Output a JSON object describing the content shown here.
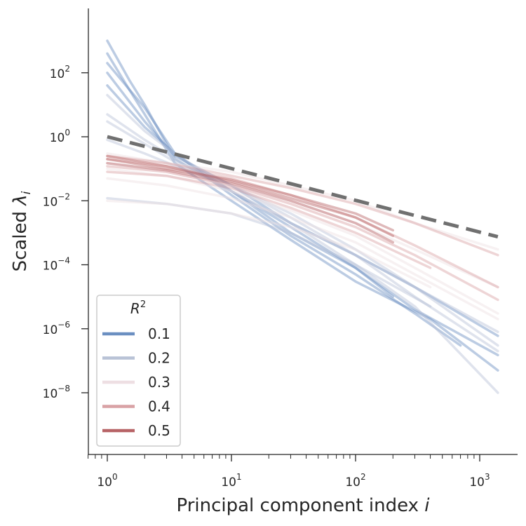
{
  "chart_data": {
    "type": "line",
    "title": "",
    "xlabel": "Principal component index",
    "xlabel_var": "i",
    "ylabel": "Scaled",
    "ylabel_var": "λ",
    "ylabel_sub": "i",
    "xscale": "log",
    "yscale": "log",
    "xlim": [
      0.7,
      2000
    ],
    "ylim": [
      1e-10,
      10000.0
    ],
    "xticks": [
      {
        "base": "10",
        "exp": "0",
        "value": 1
      },
      {
        "base": "10",
        "exp": "1",
        "value": 10
      },
      {
        "base": "10",
        "exp": "2",
        "value": 100
      },
      {
        "base": "10",
        "exp": "3",
        "value": 1000
      }
    ],
    "yticks": [
      {
        "base": "10",
        "exp": "2",
        "value": 100
      },
      {
        "base": "10",
        "exp": "0",
        "value": 1
      },
      {
        "base": "10",
        "exp": "−2",
        "value": 0.01
      },
      {
        "base": "10",
        "exp": "−4",
        "value": 0.0001
      },
      {
        "base": "10",
        "exp": "−6",
        "value": 1e-06
      },
      {
        "base": "10",
        "exp": "−8",
        "value": 1e-08
      }
    ],
    "grid": false,
    "legend": {
      "title": "R",
      "title_sup": "2",
      "placement": "lower-left",
      "entries": [
        {
          "label": "0.1",
          "color": "#6b8fc1"
        },
        {
          "label": "0.2",
          "color": "#b8c2d6"
        },
        {
          "label": "0.3",
          "color": "#eedfe3"
        },
        {
          "label": "0.4",
          "color": "#d9a2a5"
        },
        {
          "label": "0.5",
          "color": "#b76366"
        }
      ]
    },
    "reference_line": {
      "style": "dashed",
      "color": "#707070",
      "x": [
        1,
        1400
      ],
      "y": [
        1.0,
        0.00075
      ]
    },
    "series": [
      {
        "r2": "0.1",
        "color": "#6b8fc1",
        "x": [
          1,
          1.5,
          2,
          3.5,
          10,
          30,
          100,
          300,
          1400
        ],
        "y": [
          1000,
          60,
          10,
          0.2,
          0.02,
          0.001,
          8e-05,
          4e-06,
          1.5e-07
        ]
      },
      {
        "r2": "0.1",
        "color": "#6b8fc1",
        "x": [
          1,
          1.5,
          2,
          3.5,
          10,
          30,
          100,
          400,
          1400
        ],
        "y": [
          400,
          30,
          5,
          0.15,
          0.01,
          0.0006,
          3e-05,
          2e-06,
          5e-08
        ]
      },
      {
        "r2": "0.1",
        "color": "#6b8fc1",
        "x": [
          1,
          2,
          3.5,
          10,
          30,
          100,
          300,
          1400
        ],
        "y": [
          100,
          3,
          0.25,
          0.03,
          0.002,
          0.0002,
          2e-05,
          6e-07
        ]
      },
      {
        "r2": "0.1",
        "color": "#6b8fc1",
        "x": [
          1,
          2,
          3.5,
          10,
          30,
          100,
          200
        ],
        "y": [
          40,
          2,
          0.3,
          0.02,
          0.0015,
          8e-05,
          1e-05
        ]
      },
      {
        "r2": "0.1",
        "color": "#6b8fc1",
        "x": [
          1,
          2,
          3.5,
          10,
          30,
          100,
          300,
          700
        ],
        "y": [
          200,
          8,
          0.3,
          0.015,
          0.0008,
          5e-05,
          3e-06,
          3e-07
        ]
      },
      {
        "r2": "0.2",
        "color": "#b8c2d6",
        "x": [
          1,
          2,
          4,
          10,
          30,
          100,
          300,
          1400
        ],
        "y": [
          20,
          1.5,
          0.2,
          0.03,
          0.003,
          0.0002,
          2e-05,
          8e-07
        ]
      },
      {
        "r2": "0.2",
        "color": "#b8c2d6",
        "x": [
          1,
          2,
          4,
          10,
          30,
          100,
          400
        ],
        "y": [
          5,
          0.8,
          0.15,
          0.02,
          0.002,
          0.0001,
          5e-06
        ]
      },
      {
        "r2": "0.2",
        "color": "#b8c2d6",
        "x": [
          1,
          2,
          4,
          10,
          30,
          100,
          300,
          1400
        ],
        "y": [
          0.8,
          0.3,
          0.1,
          0.03,
          0.004,
          0.0003,
          2e-05,
          3e-07
        ]
      },
      {
        "r2": "0.2",
        "color": "#b8c2d6",
        "x": [
          1,
          3,
          10,
          30,
          100,
          300,
          1400
        ],
        "y": [
          0.012,
          0.008,
          0.004,
          0.001,
          0.0001,
          5e-06,
          1e-08
        ]
      },
      {
        "r2": "0.2",
        "color": "#b8c2d6",
        "x": [
          1,
          2,
          4,
          10,
          30,
          100,
          300,
          1400
        ],
        "y": [
          3,
          0.6,
          0.12,
          0.02,
          0.002,
          0.0002,
          1e-05,
          2e-07
        ]
      },
      {
        "r2": "0.3",
        "color": "#eedfe3",
        "x": [
          1,
          3,
          10,
          30,
          100,
          300,
          1400
        ],
        "y": [
          0.3,
          0.15,
          0.08,
          0.03,
          0.01,
          0.002,
          0.0003
        ]
      },
      {
        "r2": "0.3",
        "color": "#eedfe3",
        "x": [
          1,
          3,
          10,
          30,
          100,
          300,
          1400
        ],
        "y": [
          0.15,
          0.08,
          0.03,
          0.01,
          0.002,
          0.0003,
          2e-05
        ]
      },
      {
        "r2": "0.3",
        "color": "#eedfe3",
        "x": [
          1,
          3,
          10,
          30,
          100,
          300,
          1400
        ],
        "y": [
          0.05,
          0.03,
          0.012,
          0.003,
          0.0005,
          5e-05,
          2e-06
        ]
      },
      {
        "r2": "0.3",
        "color": "#eedfe3",
        "x": [
          1,
          3,
          10,
          30,
          100,
          400
        ],
        "y": [
          0.01,
          0.008,
          0.004,
          0.0015,
          0.0003,
          2e-05
        ]
      },
      {
        "r2": "0.3",
        "color": "#eedfe3",
        "x": [
          1,
          3,
          10,
          30,
          100,
          300,
          1400
        ],
        "y": [
          0.1,
          0.06,
          0.02,
          0.005,
          0.0008,
          8e-05,
          3e-06
        ]
      },
      {
        "r2": "0.4",
        "color": "#d9a2a5",
        "x": [
          1,
          3,
          10,
          30,
          100,
          300,
          1400
        ],
        "y": [
          0.2,
          0.12,
          0.05,
          0.015,
          0.003,
          0.0004,
          2e-05
        ]
      },
      {
        "r2": "0.4",
        "color": "#d9a2a5",
        "x": [
          1,
          3,
          10,
          30,
          100,
          300,
          1400
        ],
        "y": [
          0.12,
          0.08,
          0.03,
          0.008,
          0.0015,
          0.0002,
          8e-06
        ]
      },
      {
        "r2": "0.4",
        "color": "#d9a2a5",
        "x": [
          1,
          3,
          10,
          30,
          100,
          300,
          1400
        ],
        "y": [
          0.25,
          0.15,
          0.06,
          0.025,
          0.008,
          0.002,
          0.0002
        ]
      },
      {
        "r2": "0.4",
        "color": "#d9a2a5",
        "x": [
          1,
          3,
          10,
          30,
          100,
          400
        ],
        "y": [
          0.08,
          0.06,
          0.025,
          0.006,
          0.001,
          8e-05
        ]
      },
      {
        "r2": "0.5",
        "color": "#b76366",
        "x": [
          1,
          3,
          10,
          30,
          100,
          200
        ],
        "y": [
          0.25,
          0.12,
          0.04,
          0.012,
          0.003,
          0.0008
        ]
      },
      {
        "r2": "0.5",
        "color": "#b76366",
        "x": [
          1,
          3,
          10,
          30,
          100,
          200
        ],
        "y": [
          0.15,
          0.09,
          0.035,
          0.01,
          0.002,
          0.0005
        ]
      },
      {
        "r2": "0.5",
        "color": "#b76366",
        "x": [
          1,
          3,
          10,
          30,
          100,
          200
        ],
        "y": [
          0.2,
          0.1,
          0.045,
          0.015,
          0.004,
          0.0012
        ]
      }
    ]
  }
}
